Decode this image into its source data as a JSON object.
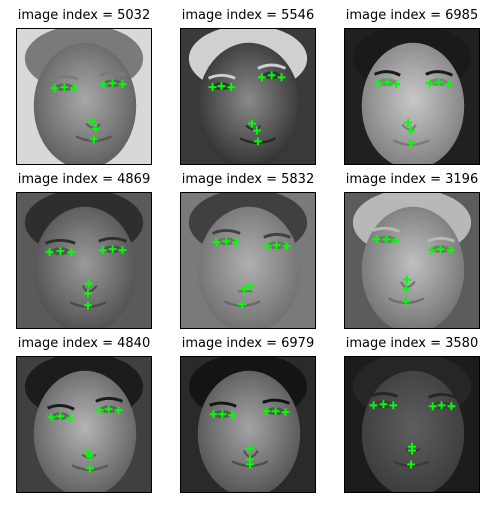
{
  "grid": {
    "rows": 3,
    "cols": 3
  },
  "panels": [
    {
      "title": "image index = 5032"
    },
    {
      "title": "image index = 5546"
    },
    {
      "title": "image index = 6985"
    },
    {
      "title": "image index = 4869"
    },
    {
      "title": "image index = 5832"
    },
    {
      "title": "image index = 3196"
    },
    {
      "title": "image index = 4840"
    },
    {
      "title": "image index = 6979"
    },
    {
      "title": "image index = 3580"
    }
  ],
  "marker_color": "#00ff00",
  "marker_symbol": "plus"
}
